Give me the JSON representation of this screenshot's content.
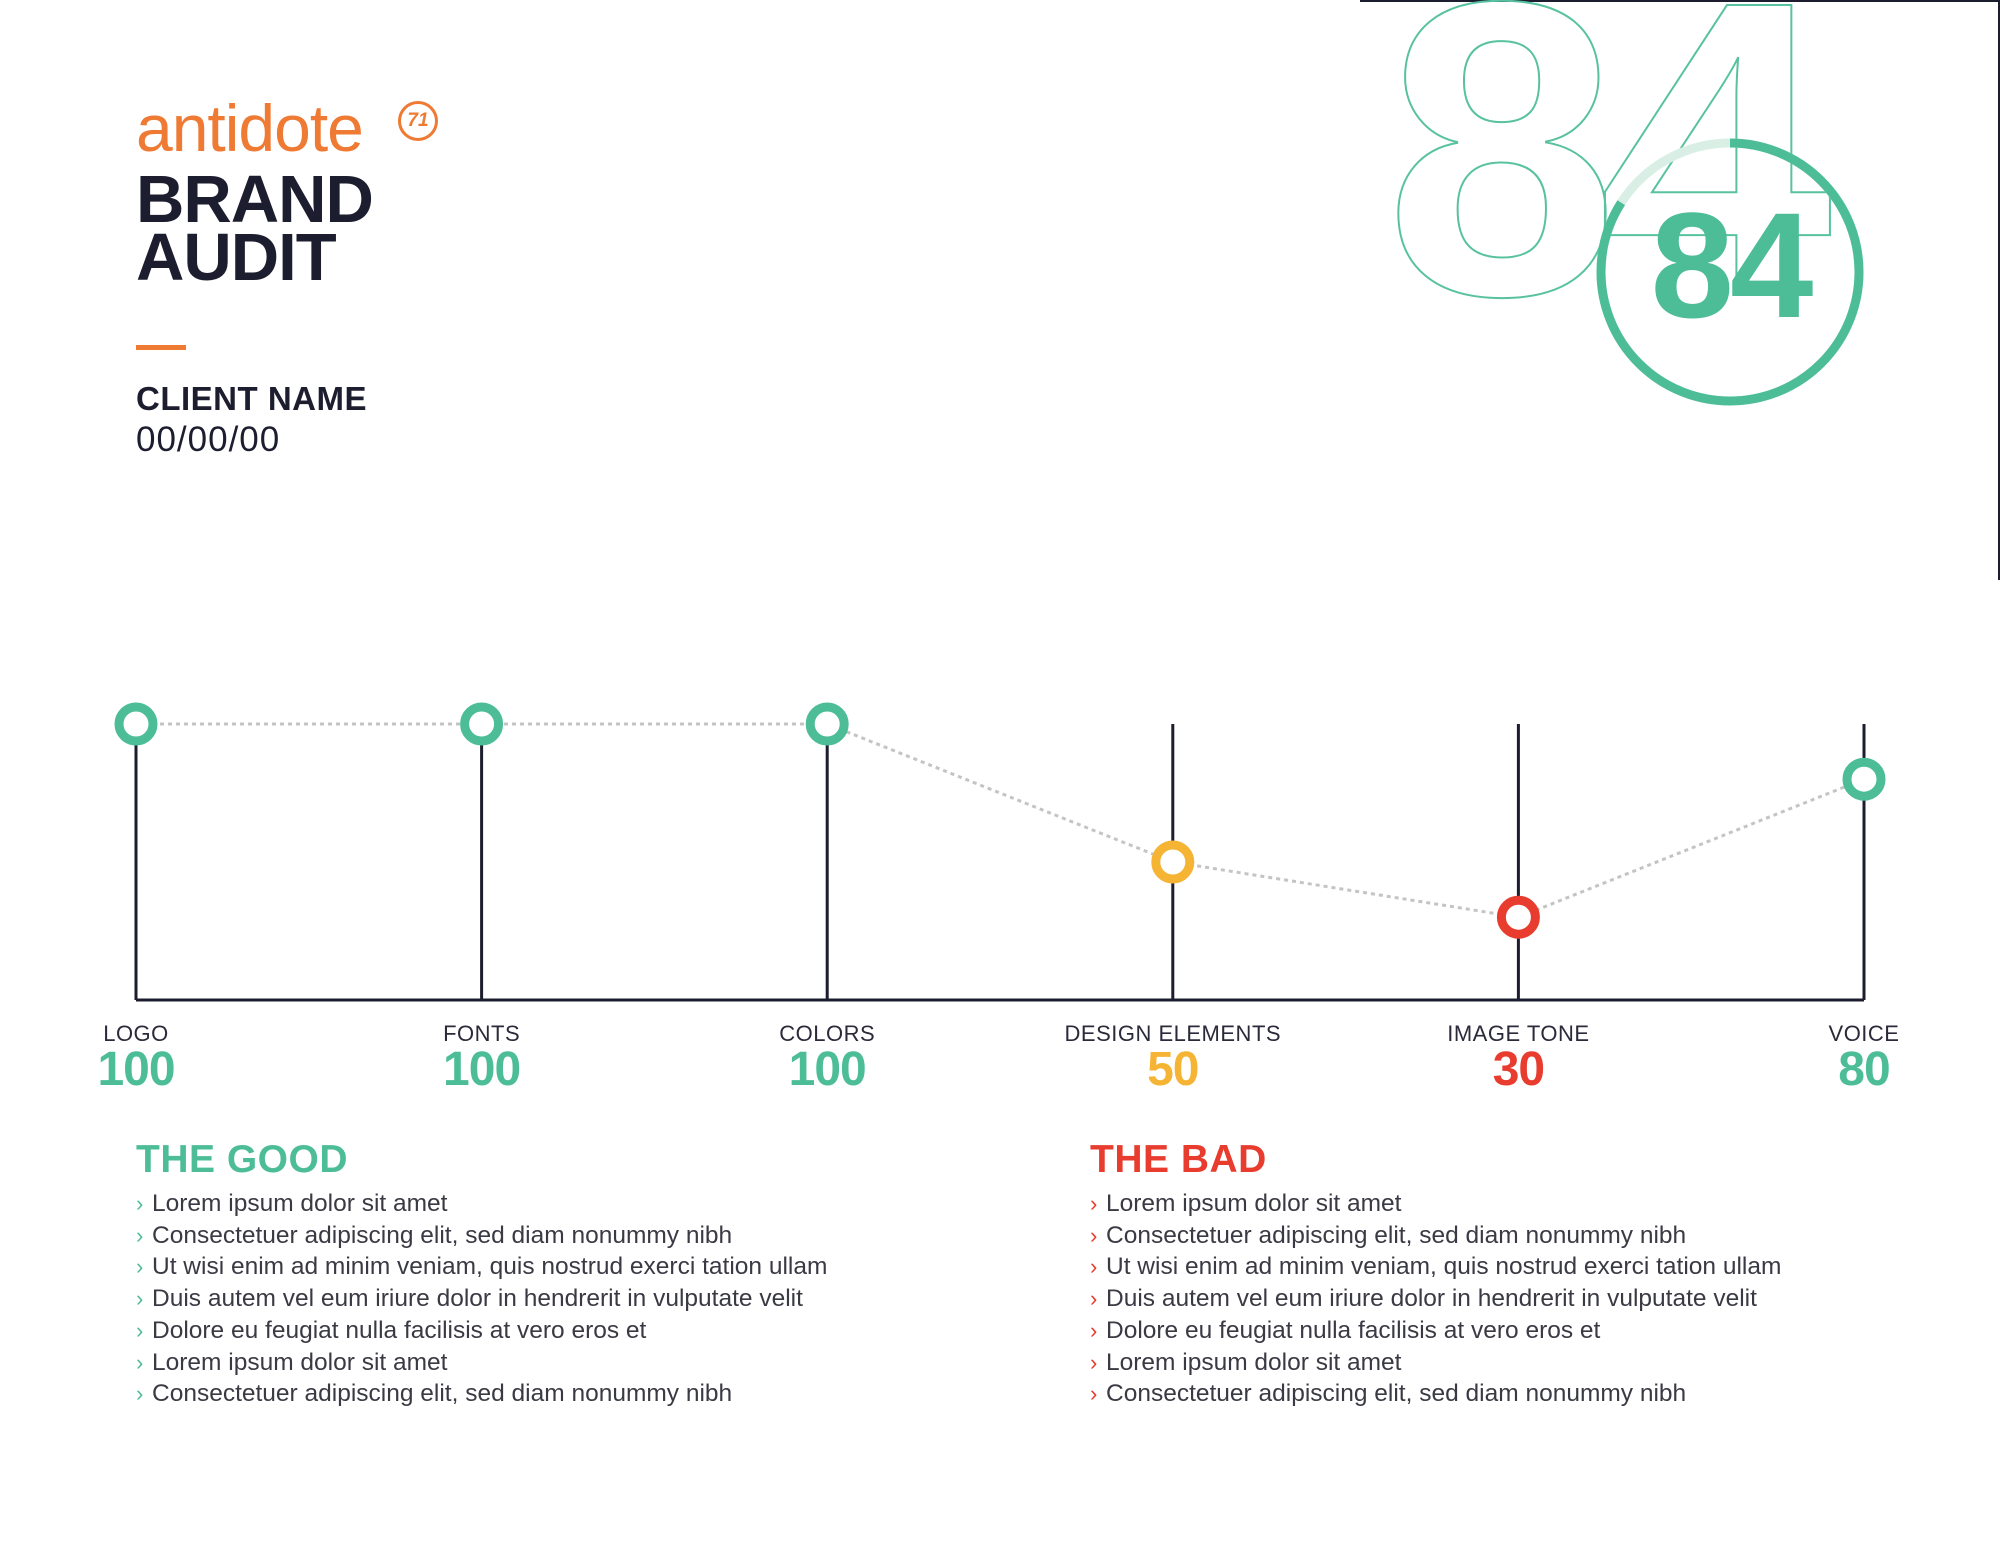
{
  "brand": {
    "logo_text": "antidote",
    "logo_badge": "71",
    "title_line1": "BRAND",
    "title_line2": "AUDIT",
    "client_name": "CLIENT NAME",
    "date": "00/00/00"
  },
  "score": {
    "value": "84",
    "watermark": "84",
    "fraction": 0.84
  },
  "colors": {
    "orange": "#ee7a33",
    "green": "#4dbd98",
    "yellow": "#f6b435",
    "red": "#e83c2f",
    "navy": "#1c1d2e"
  },
  "chart_data": {
    "type": "line",
    "categories": [
      "LOGO",
      "FONTS",
      "COLORS",
      "DESIGN ELEMENTS",
      "IMAGE TONE",
      "VOICE"
    ],
    "values": [
      100,
      100,
      100,
      50,
      30,
      80
    ],
    "value_labels": [
      "100",
      "100",
      "100",
      "50",
      "30",
      "80"
    ],
    "status": [
      "good",
      "good",
      "good",
      "warning",
      "bad",
      "good"
    ],
    "ylim": [
      0,
      100
    ],
    "grid": false,
    "line_style": "dotted",
    "title": "",
    "xlabel": "",
    "ylabel": ""
  },
  "good": {
    "title": "THE GOOD",
    "items": [
      "Lorem ipsum dolor sit amet",
      "Consectetuer adipiscing elit, sed diam nonummy nibh",
      "Ut wisi enim ad minim veniam, quis nostrud exerci tation ullam",
      "Duis autem vel eum iriure dolor in hendrerit in vulputate velit",
      "Dolore eu feugiat nulla facilisis at vero eros et",
      "Lorem ipsum dolor sit amet",
      "Consectetuer adipiscing elit, sed diam nonummy nibh"
    ]
  },
  "bad": {
    "title": "THE BAD",
    "items": [
      "Lorem ipsum dolor sit amet",
      "Consectetuer adipiscing elit, sed diam nonummy nibh",
      "Ut wisi enim ad minim veniam, quis nostrud exerci tation ullam",
      "Duis autem vel eum iriure dolor in hendrerit in vulputate velit",
      "Dolore eu feugiat nulla facilisis at vero eros et",
      "Lorem ipsum dolor sit amet",
      "Consectetuer adipiscing elit, sed diam nonummy nibh"
    ]
  }
}
